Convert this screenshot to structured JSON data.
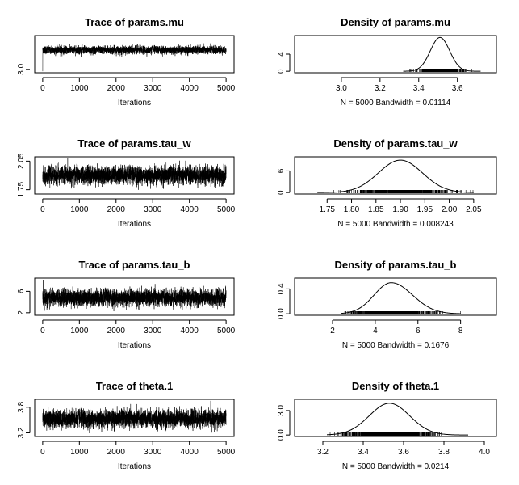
{
  "chart_data": [
    {
      "type": "line",
      "role": "trace",
      "title": "Trace of params.mu",
      "xlabel": "Iterations",
      "ylabel": "",
      "xlim": [
        0,
        5000
      ],
      "ylim": [
        2.95,
        3.85
      ],
      "xticks": [
        "0",
        "1000",
        "2000",
        "3000",
        "4000",
        "5000"
      ],
      "yticks": [
        "3.0"
      ],
      "series": [
        {
          "mean": 3.51,
          "sd": 0.05,
          "start": 2.95,
          "n": 5000
        }
      ]
    },
    {
      "type": "line",
      "role": "density",
      "title": "Density of params.mu",
      "xlabel": "N = 5000   Bandwidth = 0.01114",
      "ylabel": "",
      "xlim": [
        2.8,
        3.76
      ],
      "ylim": [
        0,
        8
      ],
      "xticks": [
        "3.0",
        "3.2",
        "3.4",
        "3.6"
      ],
      "yticks": [
        "0",
        "4"
      ],
      "series": [
        {
          "peak_x": 3.51,
          "peak_y": 7.9,
          "sd": 0.05,
          "rug": [
            3.32,
            3.72
          ]
        }
      ]
    },
    {
      "type": "line",
      "role": "trace",
      "title": "Trace of params.tau_w",
      "xlabel": "Iterations",
      "ylabel": "",
      "xlim": [
        0,
        5000
      ],
      "ylim": [
        1.72,
        2.08
      ],
      "xticks": [
        "0",
        "1000",
        "2000",
        "3000",
        "4000",
        "5000"
      ],
      "yticks": [
        "1.75",
        "2.05"
      ],
      "series": [
        {
          "mean": 1.9,
          "sd": 0.045,
          "n": 5000
        }
      ]
    },
    {
      "type": "line",
      "role": "density",
      "title": "Density of params.tau_w",
      "xlabel": "N = 5000   Bandwidth = 0.008243",
      "ylabel": "",
      "xlim": [
        1.7,
        2.08
      ],
      "ylim": [
        0,
        9.5
      ],
      "xticks": [
        "1.75",
        "1.80",
        "1.85",
        "1.90",
        "1.95",
        "2.00",
        "2.05"
      ],
      "yticks": [
        "0",
        "6"
      ],
      "series": [
        {
          "peak_x": 1.9,
          "peak_y": 9.0,
          "sd": 0.045,
          "rug": [
            1.73,
            2.05
          ]
        }
      ]
    },
    {
      "type": "line",
      "role": "trace",
      "title": "Trace of params.tau_b",
      "xlabel": "Iterations",
      "ylabel": "",
      "xlim": [
        0,
        5000
      ],
      "ylim": [
        1.8,
        8.2
      ],
      "xticks": [
        "0",
        "1000",
        "2000",
        "3000",
        "4000",
        "5000"
      ],
      "yticks": [
        "2",
        "6"
      ],
      "series": [
        {
          "mean": 4.8,
          "sd": 0.75,
          "n": 5000
        }
      ]
    },
    {
      "type": "line",
      "role": "density",
      "title": "Density of params.tau_b",
      "xlabel": "N = 5000   Bandwidth = 0.1676",
      "ylabel": "",
      "xlim": [
        0.6,
        9.3
      ],
      "ylim": [
        0,
        0.55
      ],
      "xticks": [
        "2",
        "4",
        "6",
        "8"
      ],
      "yticks": [
        "0.0",
        "0.4"
      ],
      "series": [
        {
          "peak_x": 4.75,
          "peak_y": 0.5,
          "sd": 0.8,
          "skew": 0.8,
          "rug": [
            2.4,
            8.0
          ]
        }
      ]
    },
    {
      "type": "line",
      "role": "trace",
      "title": "Trace of theta.1",
      "xlabel": "Iterations",
      "ylabel": "",
      "xlim": [
        0,
        5000
      ],
      "ylim": [
        3.15,
        3.95
      ],
      "xticks": [
        "0",
        "1000",
        "2000",
        "3000",
        "4000",
        "5000"
      ],
      "yticks": [
        "3.2",
        "3.8"
      ],
      "series": [
        {
          "mean": 3.53,
          "sd": 0.1,
          "n": 5000
        }
      ]
    },
    {
      "type": "line",
      "role": "density",
      "title": "Density of theta.1",
      "xlabel": "N = 5000   Bandwidth = 0.0214",
      "ylabel": "",
      "xlim": [
        3.1,
        4.02
      ],
      "ylim": [
        0,
        4.2
      ],
      "xticks": [
        "3.2",
        "3.4",
        "3.6",
        "3.8",
        "4.0"
      ],
      "yticks": [
        "0.0",
        "3.0"
      ],
      "series": [
        {
          "peak_x": 3.53,
          "peak_y": 3.9,
          "sd": 0.1,
          "rug": [
            3.22,
            3.92
          ]
        }
      ]
    }
  ]
}
